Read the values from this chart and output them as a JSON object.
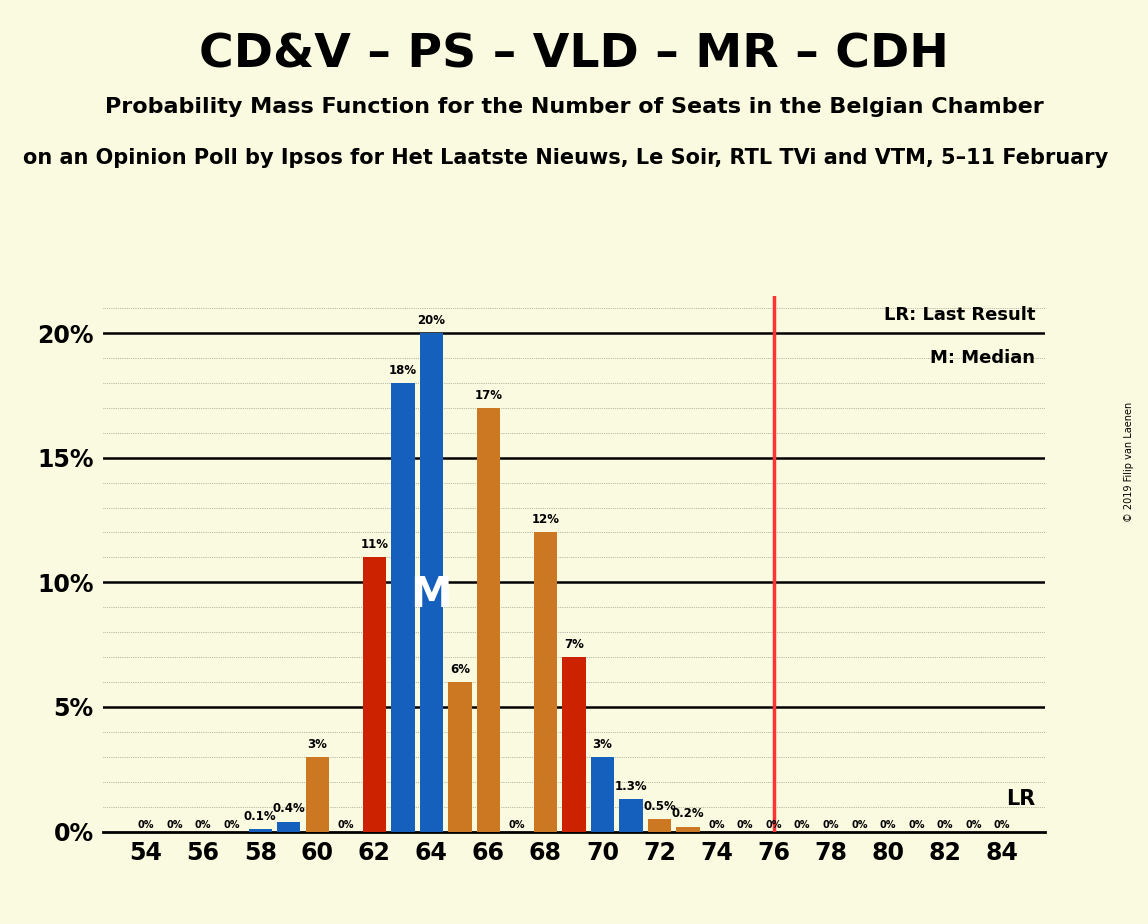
{
  "title": "CD&V – PS – VLD – MR – CDH",
  "subtitle": "Probability Mass Function for the Number of Seats in the Belgian Chamber",
  "subtitle2": "on an Opinion Poll by Ipsos for Het Laatste Nieuws, Le Soir, RTL TVi and VTM, 5–11 February",
  "watermark": "© 2019 Filip van Laenen",
  "background_color": "#FAFAE0",
  "bar_data": [
    [
      54,
      0.0,
      "blue"
    ],
    [
      55,
      0.0,
      "orange"
    ],
    [
      56,
      0.0,
      "red"
    ],
    [
      57,
      0.0,
      "blue"
    ],
    [
      58,
      0.001,
      "blue"
    ],
    [
      59,
      0.0,
      "orange"
    ],
    [
      59.5,
      0.004,
      "blue"
    ],
    [
      60,
      0.03,
      "orange"
    ],
    [
      61,
      0.0,
      "red"
    ],
    [
      62,
      0.11,
      "red"
    ],
    [
      63,
      0.18,
      "blue"
    ],
    [
      63.5,
      0.2,
      "blue"
    ],
    [
      64,
      0.06,
      "orange"
    ],
    [
      65,
      0.17,
      "orange"
    ],
    [
      66,
      0.0,
      "red"
    ],
    [
      66.5,
      0.12,
      "orange"
    ],
    [
      67,
      0.07,
      "red"
    ],
    [
      68,
      0.03,
      "blue"
    ],
    [
      68.5,
      0.013,
      "blue"
    ],
    [
      69,
      0.0,
      "red"
    ],
    [
      70,
      0.005,
      "orange"
    ],
    [
      70.5,
      0.002,
      "orange"
    ],
    [
      71,
      0.0,
      "blue"
    ],
    [
      72,
      0.0,
      "orange"
    ],
    [
      73,
      0.0,
      "red"
    ],
    [
      74,
      0.0,
      "blue"
    ],
    [
      75,
      0.0,
      "orange"
    ],
    [
      76,
      0.0,
      "red"
    ],
    [
      77,
      0.0,
      "blue"
    ],
    [
      78,
      0.0,
      "orange"
    ],
    [
      79,
      0.0,
      "red"
    ],
    [
      80,
      0.0,
      "blue"
    ],
    [
      81,
      0.0,
      "orange"
    ],
    [
      82,
      0.0,
      "red"
    ],
    [
      83,
      0.0,
      "blue"
    ],
    [
      84,
      0.0,
      "orange"
    ]
  ],
  "seat_min": 54,
  "seat_max": 84,
  "median_seat": 63.0,
  "lr_seat": 76,
  "color_blue": "#1560BD",
  "color_orange": "#CC7722",
  "color_red": "#CC2200",
  "color_lr_line": "#FF3333",
  "label_lr": "LR: Last Result",
  "label_m": "M: Median",
  "ylim": [
    0,
    0.215
  ],
  "xtick_step": 2,
  "title_fontsize": 34,
  "subtitle_fontsize": 16,
  "subtitle2_fontsize": 15
}
